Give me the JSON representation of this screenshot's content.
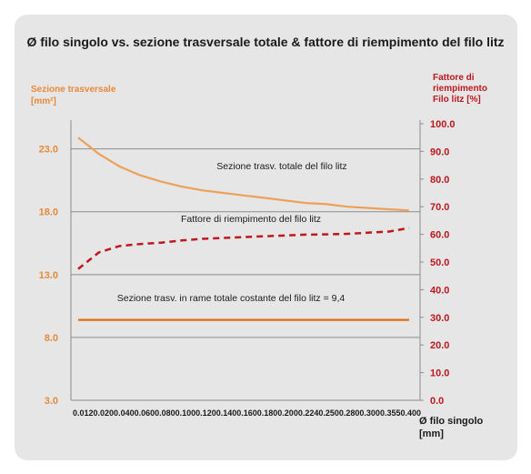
{
  "chart_data": {
    "type": "line",
    "title": "Ø filo singolo vs. sezione trasversale  totale & fattore di riempimento del filo litz",
    "y_left_label_lines": [
      "Sezione trasversale",
      "[mm²]"
    ],
    "y_right_label_lines": [
      "Fattore di",
      "riempimento",
      "Filo litz [%]"
    ],
    "x_label_lines": [
      "Ø filo singolo",
      "[mm]"
    ],
    "x_ticks": "0.0120.0200.0400.0600.0800.1000.1200.1400.1600.1800.2000.2240.2500.2800.3000.3550.400",
    "y_left_ticks": [
      "3.0",
      "8.0",
      "13.0",
      "18.0",
      "23.0"
    ],
    "y_left_range": [
      3,
      25
    ],
    "y_right_ticks": [
      "0.0",
      "10.0",
      "20.0",
      "30.0",
      "40.0",
      "50.0",
      "60.0",
      "70.0",
      "80.0",
      "90.0",
      "100.0"
    ],
    "y_right_range": [
      0,
      100
    ],
    "grid": true,
    "x": [
      0.012,
      0.02,
      0.04,
      0.06,
      0.08,
      0.1,
      0.12,
      0.14,
      0.16,
      0.18,
      0.2,
      0.224,
      0.25,
      0.28,
      0.3,
      0.355,
      0.4
    ],
    "series": [
      {
        "name": "Sezione trasv. totale del filo litz",
        "axis": "left",
        "style": "solid",
        "color": "#eea05a",
        "values": [
          23.9,
          22.6,
          21.6,
          20.9,
          20.4,
          20.0,
          19.7,
          19.5,
          19.3,
          19.1,
          18.9,
          18.7,
          18.6,
          18.4,
          18.3,
          18.2,
          18.1
        ]
      },
      {
        "name": "Fattore di riempimento  del filo litz",
        "axis": "right",
        "style": "dashed",
        "color": "#c0171e",
        "values": [
          47.5,
          53.5,
          55.8,
          56.5,
          57.0,
          57.8,
          58.4,
          58.7,
          59.0,
          59.3,
          59.6,
          59.9,
          60.0,
          60.2,
          60.6,
          61.0,
          62.3
        ]
      },
      {
        "name": "Sezione trasv. in rame totale costante del filo litz = 9,4",
        "axis": "left",
        "style": "solid",
        "color": "#e36c0a",
        "values": [
          9.4,
          9.4,
          9.4,
          9.4,
          9.4,
          9.4,
          9.4,
          9.4,
          9.4,
          9.4,
          9.4,
          9.4,
          9.4,
          9.4,
          9.4,
          9.4,
          9.4
        ]
      }
    ]
  }
}
